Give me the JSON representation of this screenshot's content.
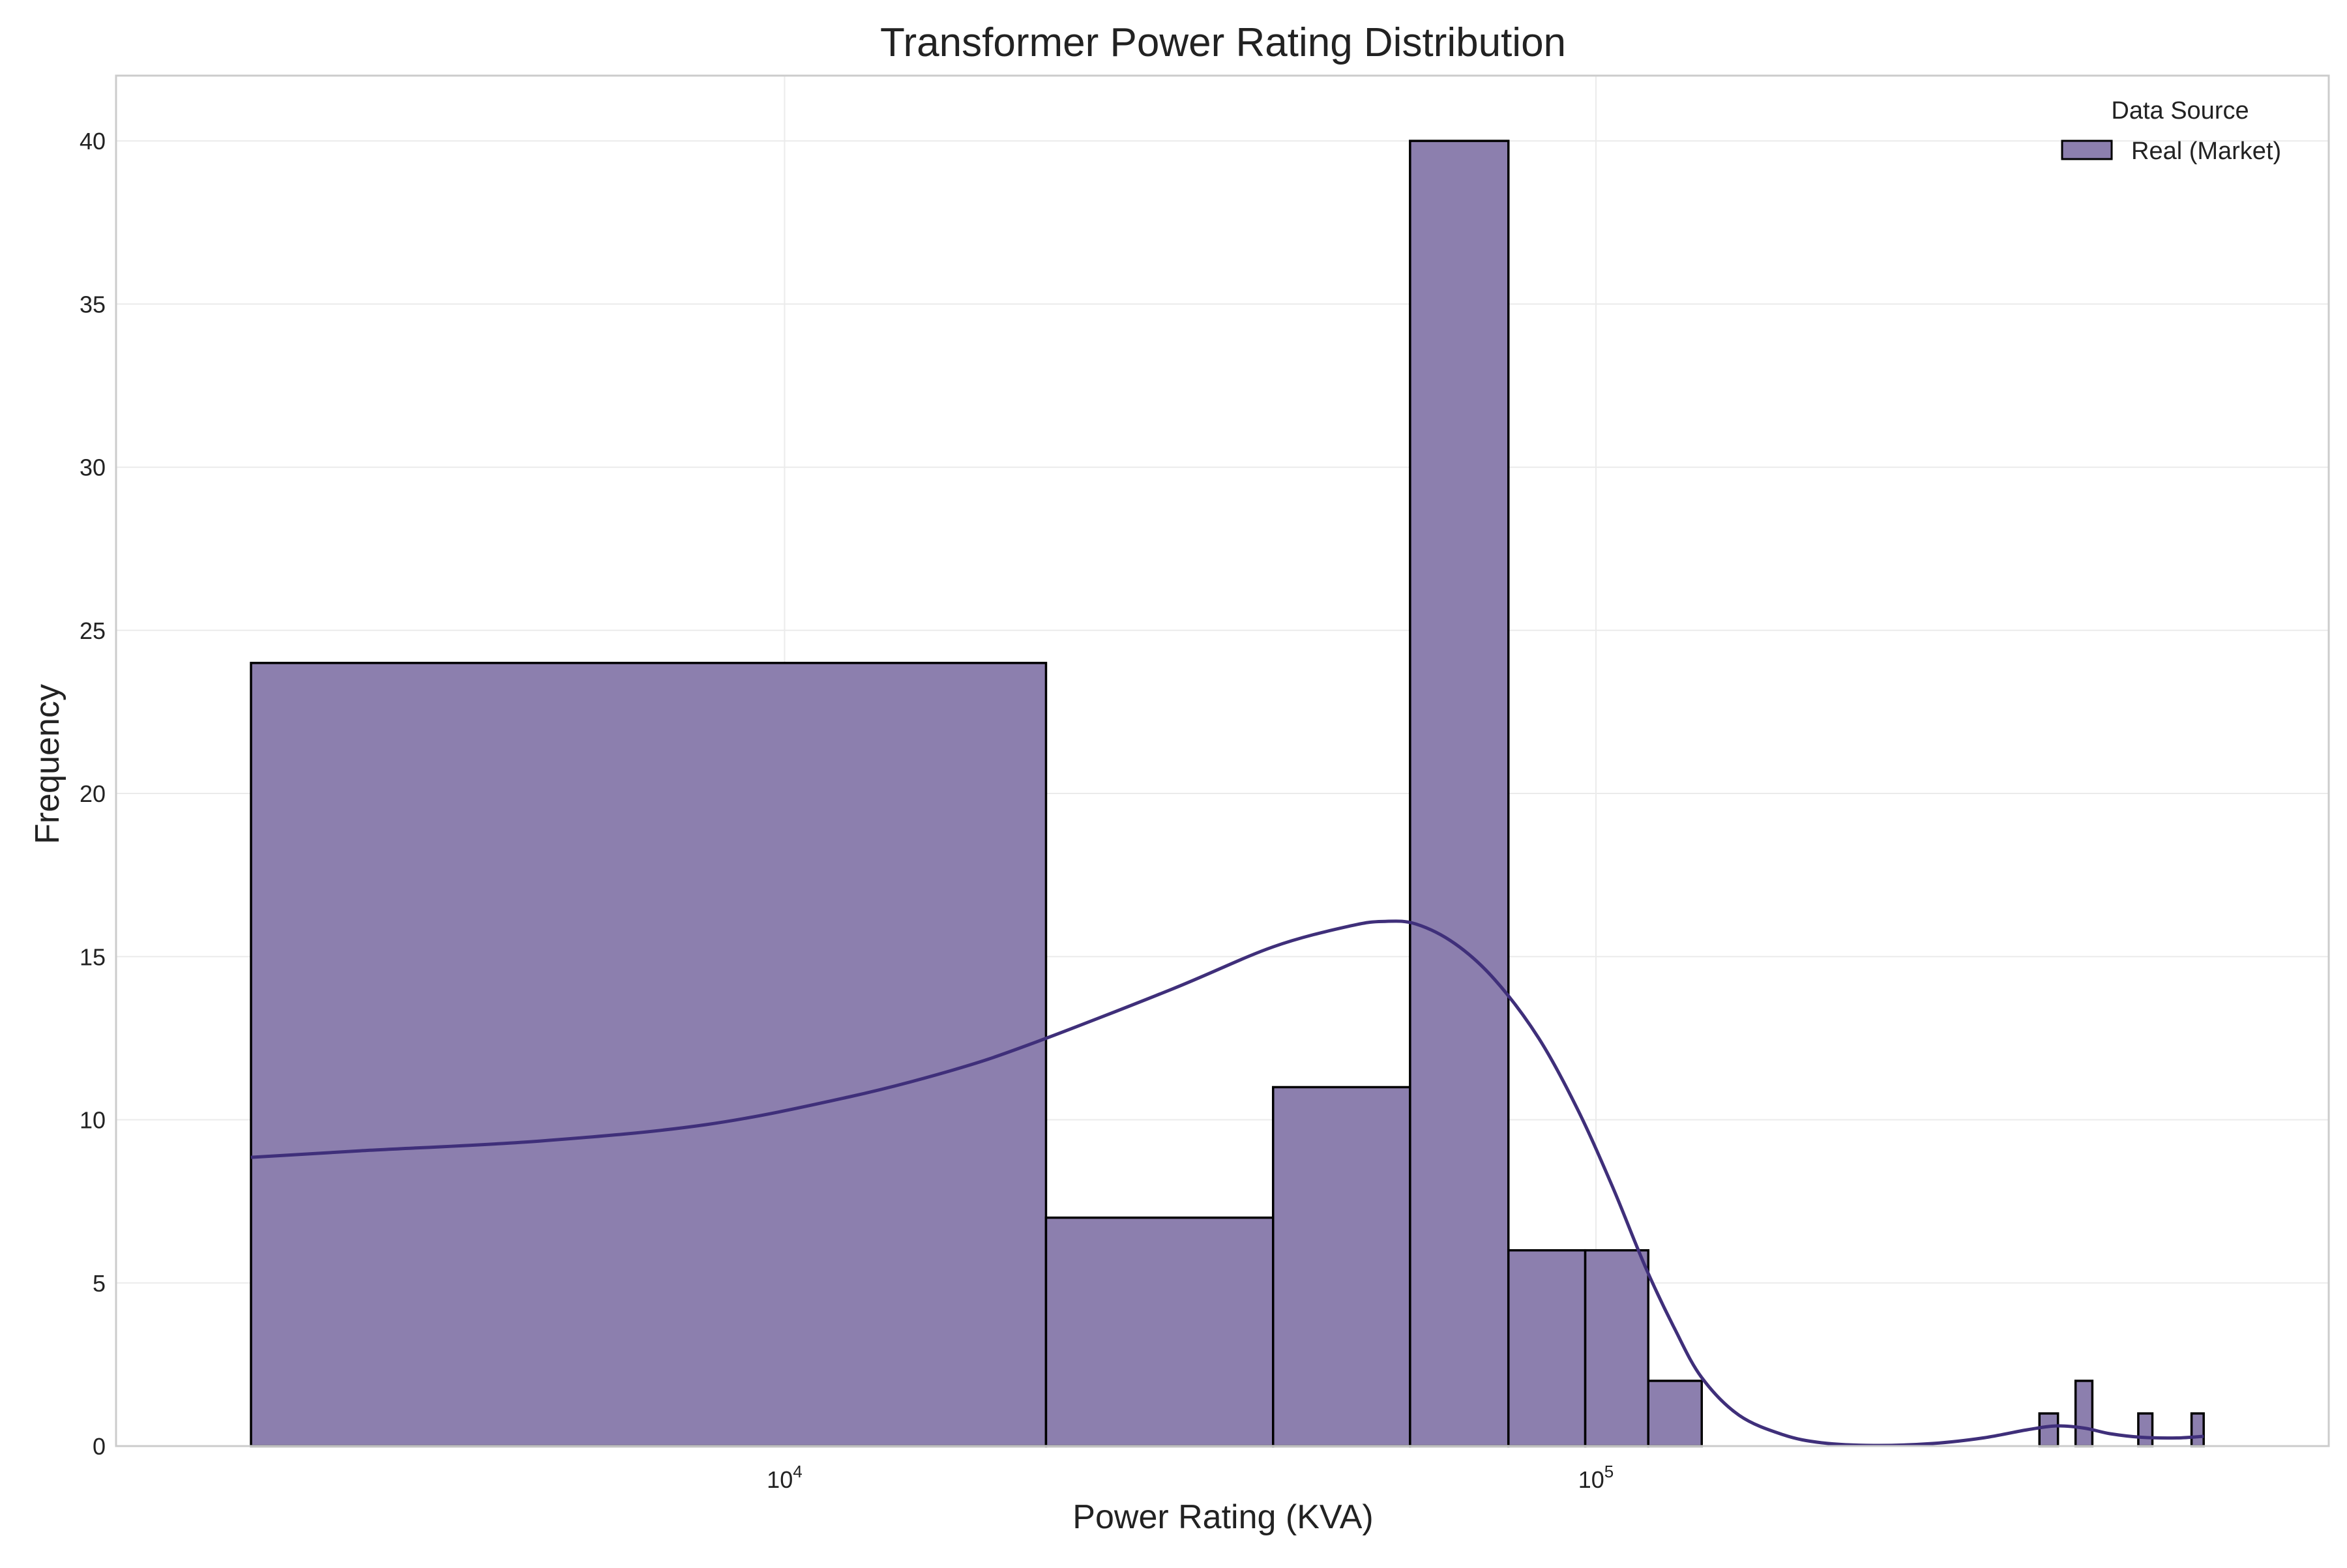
{
  "chart_data": {
    "type": "bar",
    "title": "Transformer Power Rating Distribution",
    "xlabel": "Power Rating (KVA)",
    "ylabel": "Frequency",
    "x_scale": "log",
    "xlim": [
      1500,
      800000
    ],
    "ylim": [
      0,
      42
    ],
    "grid": true,
    "legend": {
      "title": "Data Source",
      "placement": "top-right"
    },
    "x_ticks": [
      {
        "value": 10000,
        "base": "10",
        "exp": "4"
      },
      {
        "value": 100000,
        "base": "10",
        "exp": "5"
      }
    ],
    "y_ticks": [
      {
        "value": 0,
        "label": "0"
      },
      {
        "value": 5,
        "label": "5"
      },
      {
        "value": 10,
        "label": "10"
      },
      {
        "value": 15,
        "label": "15"
      },
      {
        "value": 20,
        "label": "20"
      },
      {
        "value": 25,
        "label": "25"
      },
      {
        "value": 30,
        "label": "30"
      },
      {
        "value": 35,
        "label": "35"
      },
      {
        "value": 40,
        "label": "40"
      }
    ],
    "series": [
      {
        "name": "Real (Market)",
        "color": "#8c7fae",
        "edge_color": "#000000",
        "kde_color": "#3f2f7a",
        "bins": [
          {
            "x0": 2200,
            "x1": 21000,
            "count": 24
          },
          {
            "x0": 21000,
            "x1": 40000,
            "count": 7
          },
          {
            "x0": 40000,
            "x1": 59000,
            "count": 11
          },
          {
            "x0": 59000,
            "x1": 78000,
            "count": 40
          },
          {
            "x0": 78000,
            "x1": 97000,
            "count": 6
          },
          {
            "x0": 97000,
            "x1": 116000,
            "count": 6
          },
          {
            "x0": 116000,
            "x1": 135000,
            "count": 2
          },
          {
            "x0": 352000,
            "x1": 371000,
            "count": 1
          },
          {
            "x0": 390000,
            "x1": 409000,
            "count": 2
          },
          {
            "x0": 466000,
            "x1": 485000,
            "count": 1
          },
          {
            "x0": 542000,
            "x1": 561000,
            "count": 1
          }
        ],
        "kde": [
          [
            2200,
            8.85
          ],
          [
            3000,
            9.05
          ],
          [
            5000,
            9.35
          ],
          [
            8000,
            9.85
          ],
          [
            12000,
            10.7
          ],
          [
            16000,
            11.5
          ],
          [
            20000,
            12.3
          ],
          [
            30000,
            14.0
          ],
          [
            40000,
            15.3
          ],
          [
            50000,
            15.95
          ],
          [
            55000,
            16.08
          ],
          [
            60000,
            16.0
          ],
          [
            67000,
            15.4
          ],
          [
            75000,
            14.3
          ],
          [
            85000,
            12.5
          ],
          [
            95000,
            10.3
          ],
          [
            105000,
            7.9
          ],
          [
            115000,
            5.5
          ],
          [
            125000,
            3.6
          ],
          [
            135000,
            2.1
          ],
          [
            150000,
            0.95
          ],
          [
            170000,
            0.35
          ],
          [
            190000,
            0.1
          ],
          [
            220000,
            0.02
          ],
          [
            260000,
            0.08
          ],
          [
            300000,
            0.25
          ],
          [
            340000,
            0.5
          ],
          [
            370000,
            0.62
          ],
          [
            400000,
            0.55
          ],
          [
            430000,
            0.38
          ],
          [
            470000,
            0.27
          ],
          [
            520000,
            0.25
          ],
          [
            561000,
            0.3
          ]
        ]
      }
    ]
  }
}
